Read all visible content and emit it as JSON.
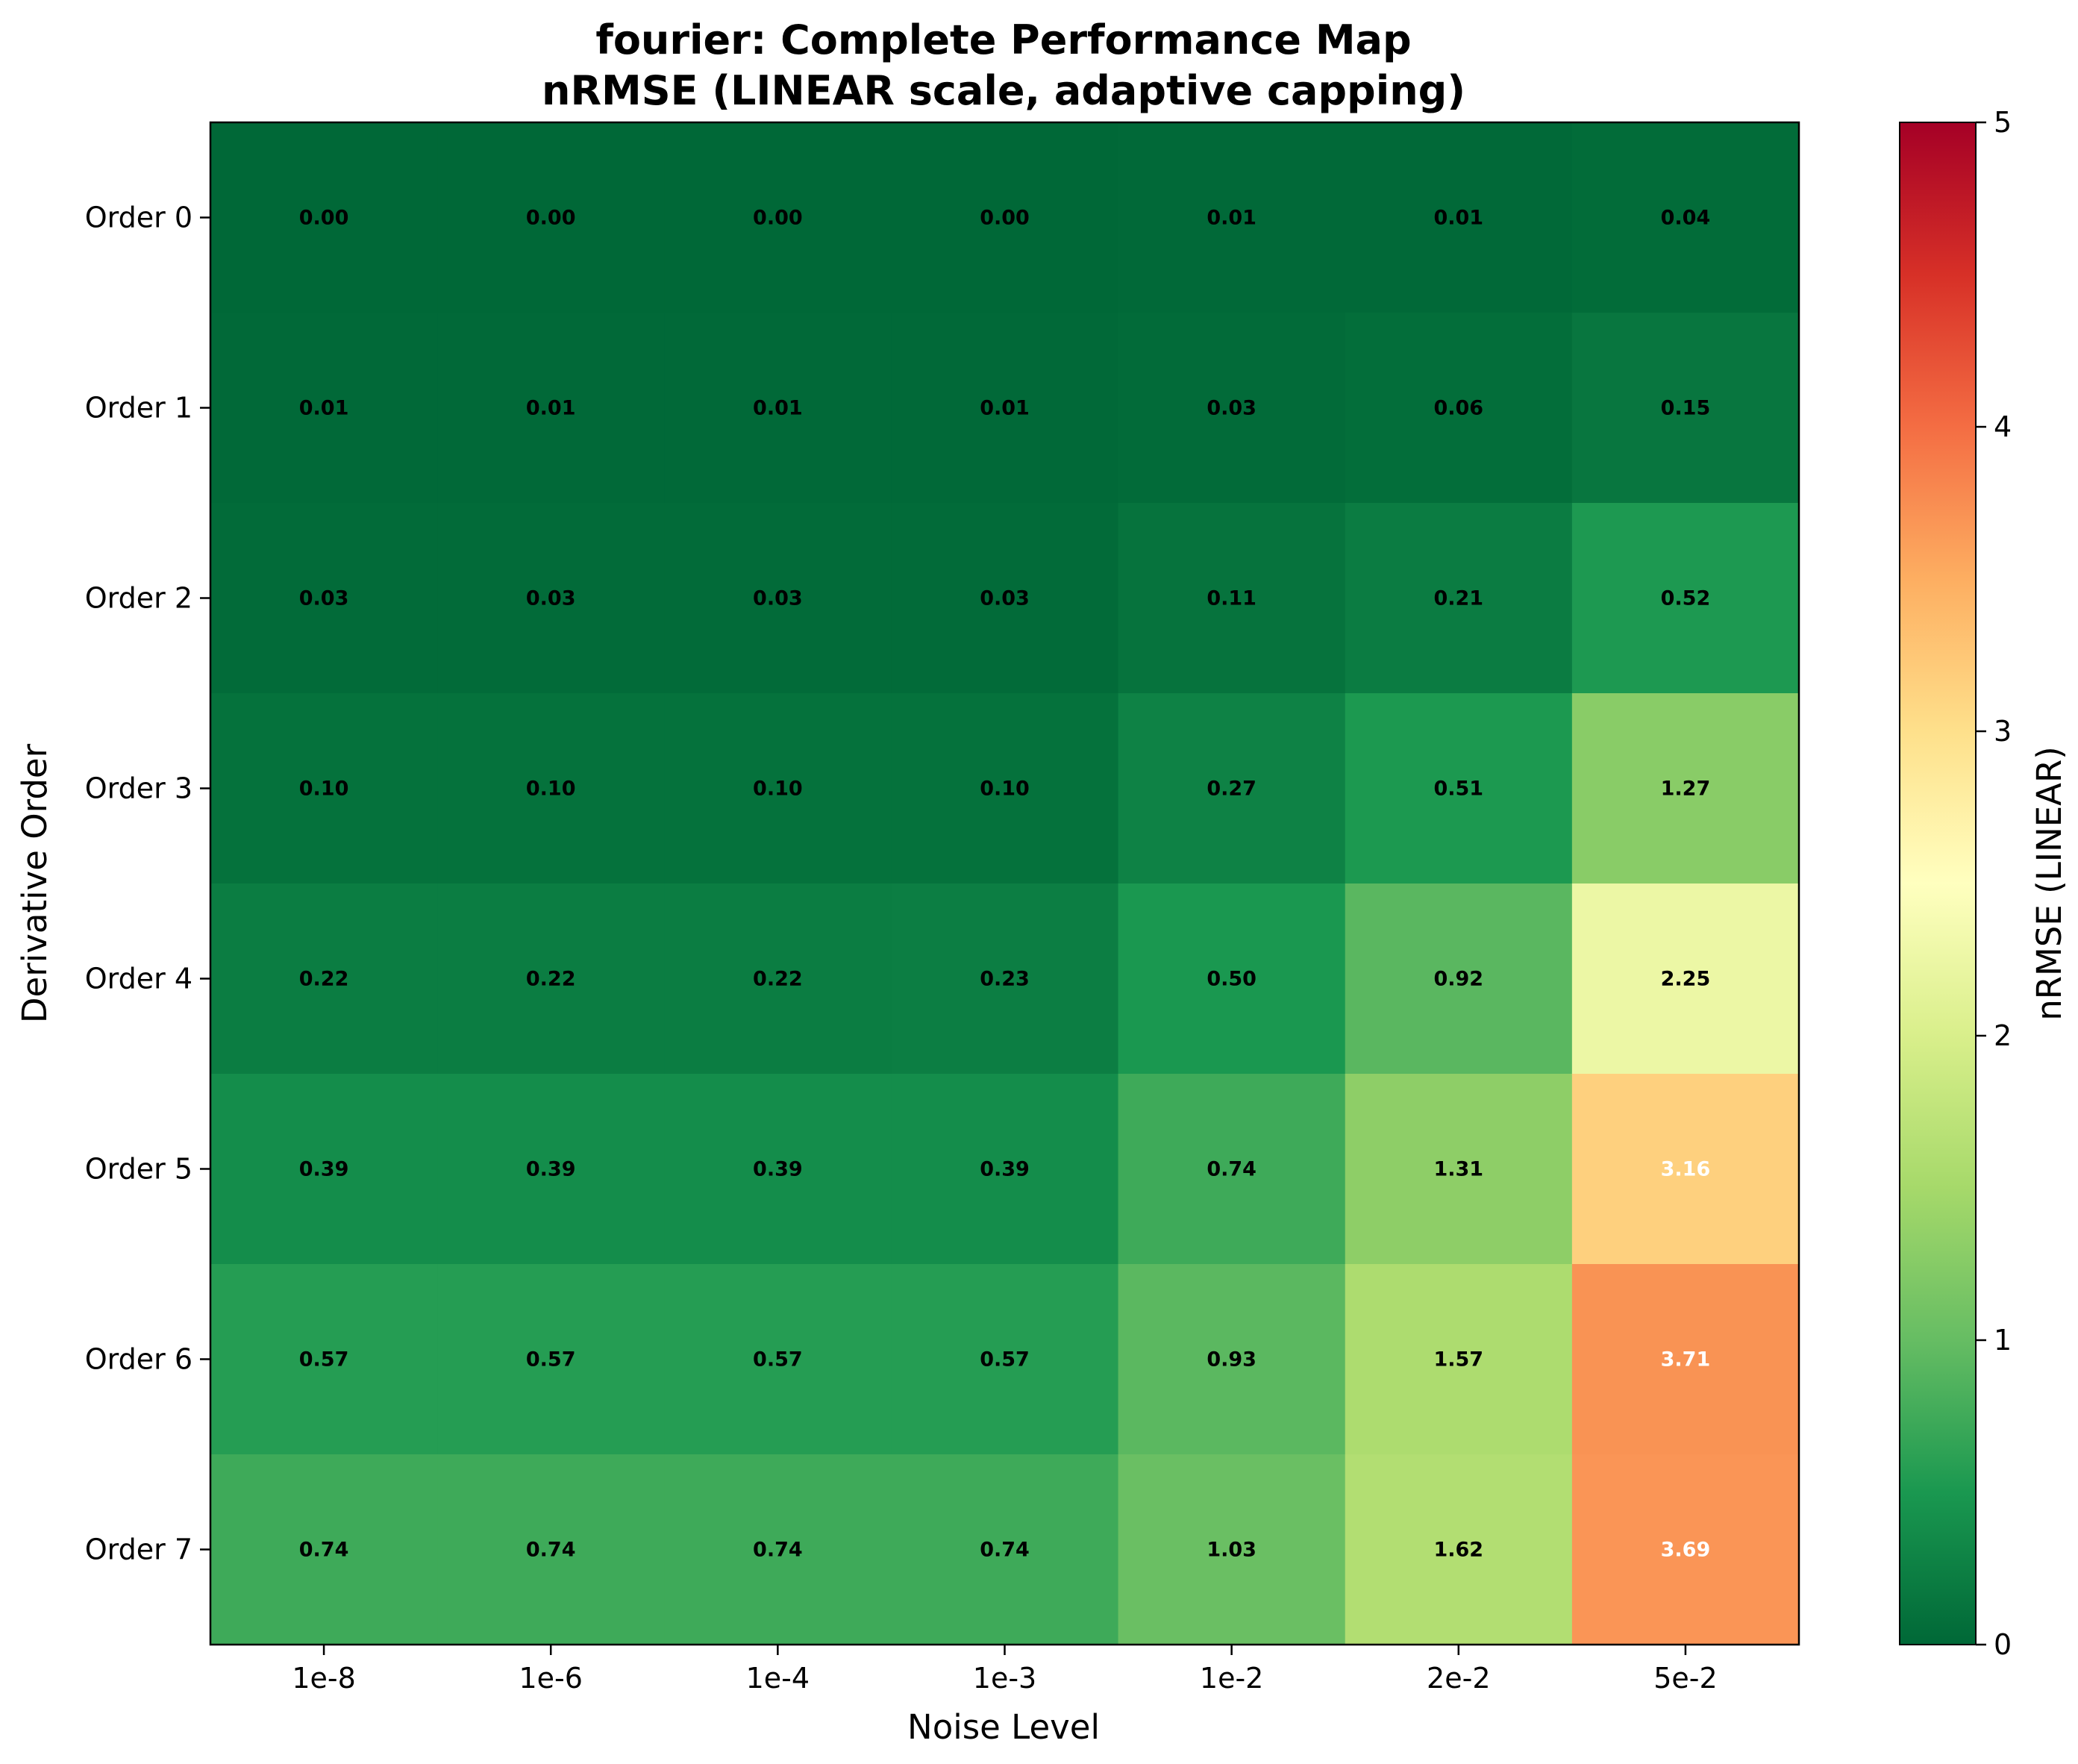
{
  "chart_data": {
    "type": "heatmap",
    "title": "fourier: Complete Performance Map",
    "subtitle": "nRMSE (LINEAR scale, adaptive capping)",
    "xlabel": "Noise Level",
    "ylabel": "Derivative Order",
    "x_categories": [
      "1e-8",
      "1e-6",
      "1e-4",
      "1e-3",
      "1e-2",
      "2e-2",
      "5e-2"
    ],
    "y_categories": [
      "Order 0",
      "Order 1",
      "Order 2",
      "Order 3",
      "Order 4",
      "Order 5",
      "Order 6",
      "Order 7"
    ],
    "values": [
      [
        0.0,
        0.0,
        0.0,
        0.0,
        0.01,
        0.01,
        0.04
      ],
      [
        0.01,
        0.01,
        0.01,
        0.01,
        0.03,
        0.06,
        0.15
      ],
      [
        0.03,
        0.03,
        0.03,
        0.03,
        0.11,
        0.21,
        0.52
      ],
      [
        0.1,
        0.1,
        0.1,
        0.1,
        0.27,
        0.51,
        1.27
      ],
      [
        0.22,
        0.22,
        0.22,
        0.23,
        0.5,
        0.92,
        2.25
      ],
      [
        0.39,
        0.39,
        0.39,
        0.39,
        0.74,
        1.31,
        3.16
      ],
      [
        0.57,
        0.57,
        0.57,
        0.57,
        0.93,
        1.57,
        3.71
      ],
      [
        0.74,
        0.74,
        0.74,
        0.74,
        1.03,
        1.62,
        3.69
      ]
    ],
    "colorbar": {
      "label": "nRMSE (LINEAR)",
      "range": [
        0,
        5
      ],
      "ticks": [
        0,
        1,
        2,
        3,
        4,
        5
      ],
      "colormap": "RdYlGn_r"
    },
    "grid": false
  }
}
